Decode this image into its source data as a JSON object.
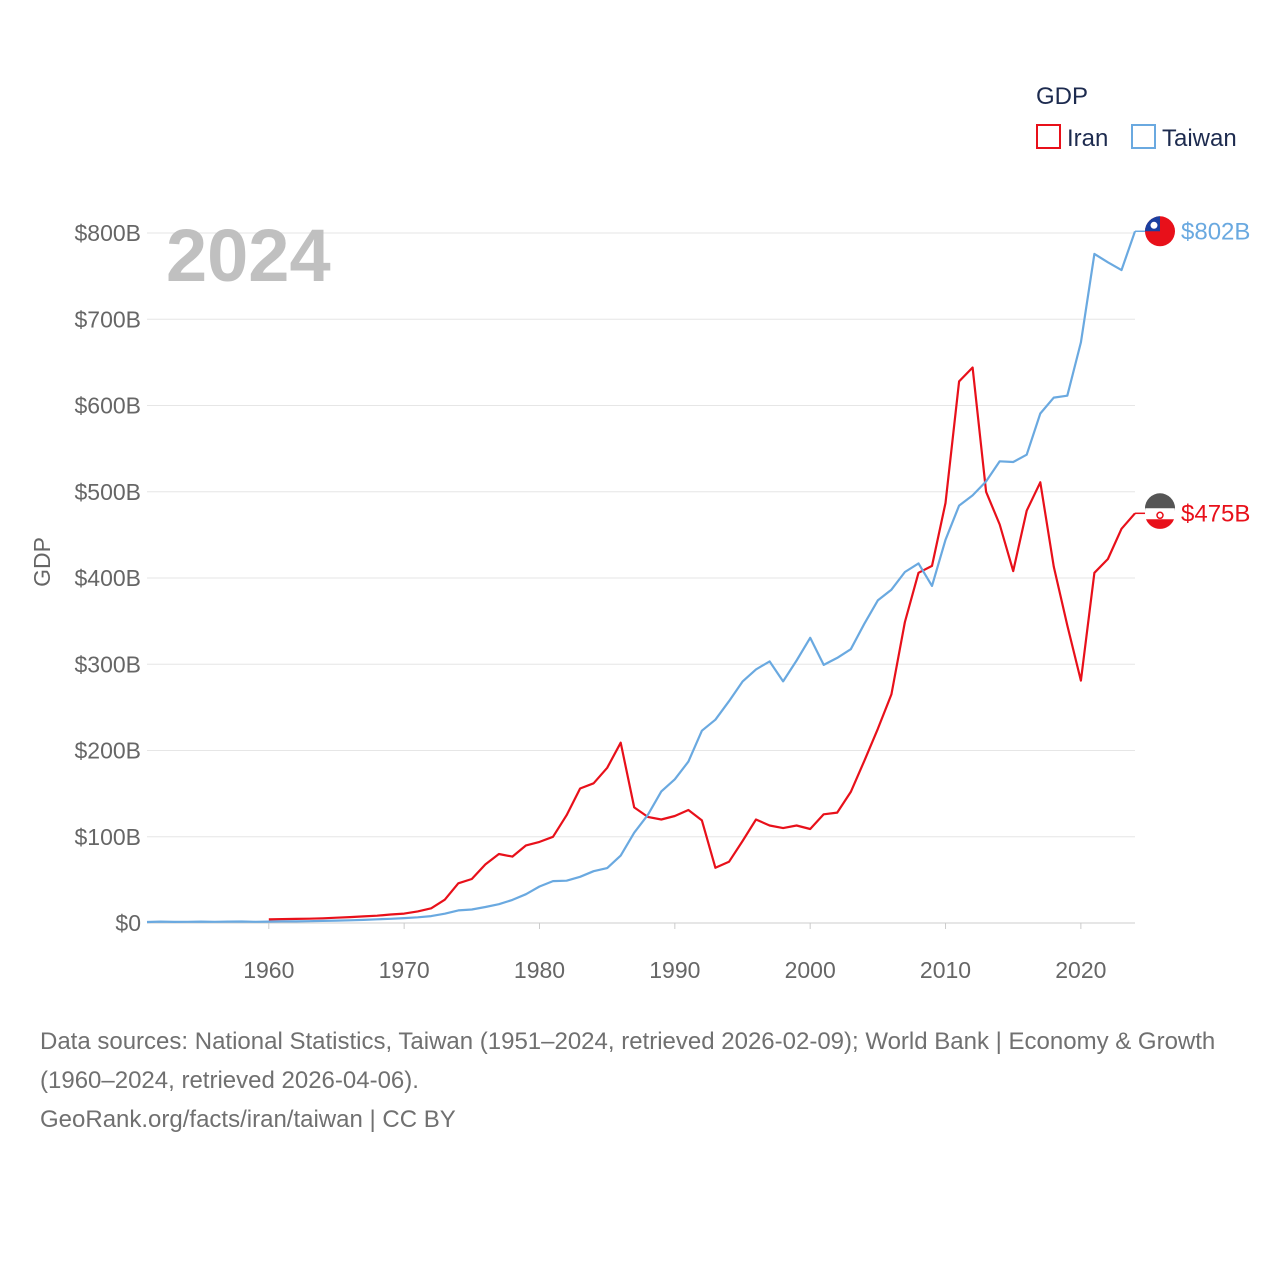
{
  "chart_data": {
    "type": "line",
    "title": "",
    "year_label": "2024",
    "ylabel": "GDP",
    "xlabel": "",
    "xlim": [
      1951,
      2024
    ],
    "ylim": [
      0,
      800
    ],
    "x_ticks": [
      1960,
      1970,
      1980,
      1990,
      2000,
      2010,
      2020
    ],
    "x_tick_labels": [
      "1960",
      "1970",
      "1980",
      "1990",
      "2000",
      "2010",
      "2020"
    ],
    "y_ticks": [
      0,
      100,
      200,
      300,
      400,
      500,
      600,
      700,
      800
    ],
    "y_tick_labels": [
      "$0",
      "$100B",
      "$200B",
      "$300B",
      "$400B",
      "$500B",
      "$600B",
      "$700B",
      "$800B"
    ],
    "legend": {
      "title": "GDP",
      "position": "top-right",
      "entries": [
        "Iran",
        "Taiwan"
      ]
    },
    "series": [
      {
        "name": "Iran",
        "color": "#e8101a",
        "end_label": "$475B",
        "flag_icon": "iran-flag-icon",
        "x": [
          1960,
          1961,
          1962,
          1963,
          1964,
          1965,
          1966,
          1967,
          1968,
          1969,
          1970,
          1971,
          1972,
          1973,
          1974,
          1975,
          1976,
          1977,
          1978,
          1979,
          1980,
          1981,
          1982,
          1983,
          1984,
          1985,
          1986,
          1987,
          1988,
          1989,
          1990,
          1991,
          1992,
          1993,
          1994,
          1995,
          1996,
          1997,
          1998,
          1999,
          2000,
          2001,
          2002,
          2003,
          2004,
          2005,
          2006,
          2007,
          2008,
          2009,
          2010,
          2011,
          2012,
          2013,
          2014,
          2015,
          2016,
          2017,
          2018,
          2019,
          2020,
          2021,
          2022,
          2023,
          2024
        ],
        "values": [
          4.2,
          4.5,
          4.7,
          5.0,
          5.5,
          6.2,
          6.8,
          7.6,
          8.5,
          9.8,
          10.9,
          13.5,
          17.0,
          27.0,
          46.0,
          51.0,
          68.0,
          80.0,
          77.0,
          90.0,
          94.0,
          100.0,
          125.0,
          156.0,
          162.0,
          180.0,
          209.0,
          134.0,
          123.0,
          120.0,
          124.0,
          131.0,
          119.0,
          64.0,
          71.0,
          95.0,
          120.0,
          113.0,
          110.0,
          113.0,
          109.0,
          126.0,
          128.0,
          152.0,
          188.0,
          225.0,
          265.0,
          349.0,
          406.0,
          414.0,
          487.0,
          628.0,
          644.0,
          500.0,
          462.0,
          408.0,
          478.0,
          511.0,
          413.0,
          345.0,
          281.0,
          406.0,
          422.0,
          457.0,
          475.0
        ]
      },
      {
        "name": "Taiwan",
        "color": "#6aa9e0",
        "end_label": "$802B",
        "flag_icon": "taiwan-flag-icon",
        "x": [
          1951,
          1952,
          1953,
          1954,
          1955,
          1956,
          1957,
          1958,
          1959,
          1960,
          1961,
          1962,
          1963,
          1964,
          1965,
          1966,
          1967,
          1968,
          1969,
          1970,
          1971,
          1972,
          1973,
          1974,
          1975,
          1976,
          1977,
          1978,
          1979,
          1980,
          1981,
          1982,
          1983,
          1984,
          1985,
          1986,
          1987,
          1988,
          1989,
          1990,
          1991,
          1992,
          1993,
          1994,
          1995,
          1996,
          1997,
          1998,
          1999,
          2000,
          2001,
          2002,
          2003,
          2004,
          2005,
          2006,
          2007,
          2008,
          2009,
          2010,
          2011,
          2012,
          2013,
          2014,
          2015,
          2016,
          2017,
          2018,
          2019,
          2020,
          2021,
          2022,
          2023,
          2024
        ],
        "values": [
          1.2,
          1.6,
          1.3,
          1.4,
          1.6,
          1.4,
          1.6,
          1.7,
          1.4,
          1.6,
          1.8,
          1.9,
          2.1,
          2.4,
          2.8,
          3.1,
          3.6,
          4.3,
          4.9,
          5.7,
          6.6,
          8.0,
          10.8,
          14.6,
          15.7,
          18.6,
          21.8,
          26.8,
          33.4,
          42.3,
          48.6,
          49.0,
          53.6,
          60.1,
          63.6,
          78.2,
          104.7,
          125.3,
          152.6,
          166.6,
          187.1,
          222.9,
          235.7,
          257.2,
          279.9,
          294.0,
          303.3,
          280.1,
          304.4,
          330.7,
          299.3,
          307.4,
          317.4,
          346.9,
          374.0,
          386.4,
          406.9,
          416.9,
          390.8,
          444.3,
          483.9,
          495.8,
          512.0,
          535.3,
          534.5,
          543.0,
          590.7,
          609.2,
          611.4,
          673.2,
          775.8,
          766.0,
          757.0,
          802.0
        ]
      }
    ]
  },
  "footer": {
    "sources_line": "Data sources: National Statistics, Taiwan (1951–2024, retrieved 2026-02-09); World Bank | Economy & Growth (1960–2024, retrieved 2026-04-06).",
    "credit_line": "GeoRank.org/facts/iran/taiwan | CC BY"
  }
}
